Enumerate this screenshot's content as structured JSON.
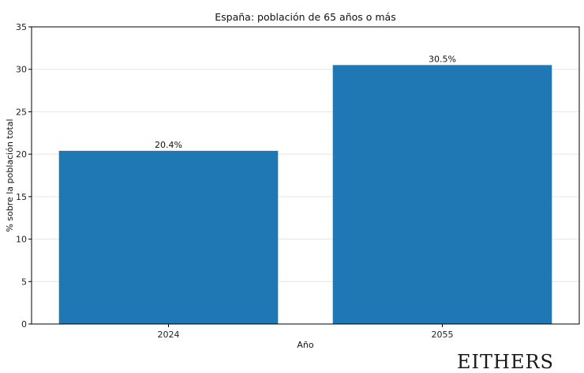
{
  "chart_data": {
    "type": "bar",
    "title": "España: población de 65 años o más",
    "xlabel": "Año",
    "ylabel": "% sobre la población total",
    "categories": [
      "2024",
      "2055"
    ],
    "values": [
      20.4,
      30.5
    ],
    "value_labels": [
      "20.4%",
      "30.5%"
    ],
    "ylim": [
      0,
      35
    ],
    "yticks": [
      0,
      5,
      10,
      15,
      20,
      25,
      30,
      35
    ],
    "grid": "horizontal",
    "bar_color": "#1f77b4"
  },
  "watermark": "EITHERS"
}
